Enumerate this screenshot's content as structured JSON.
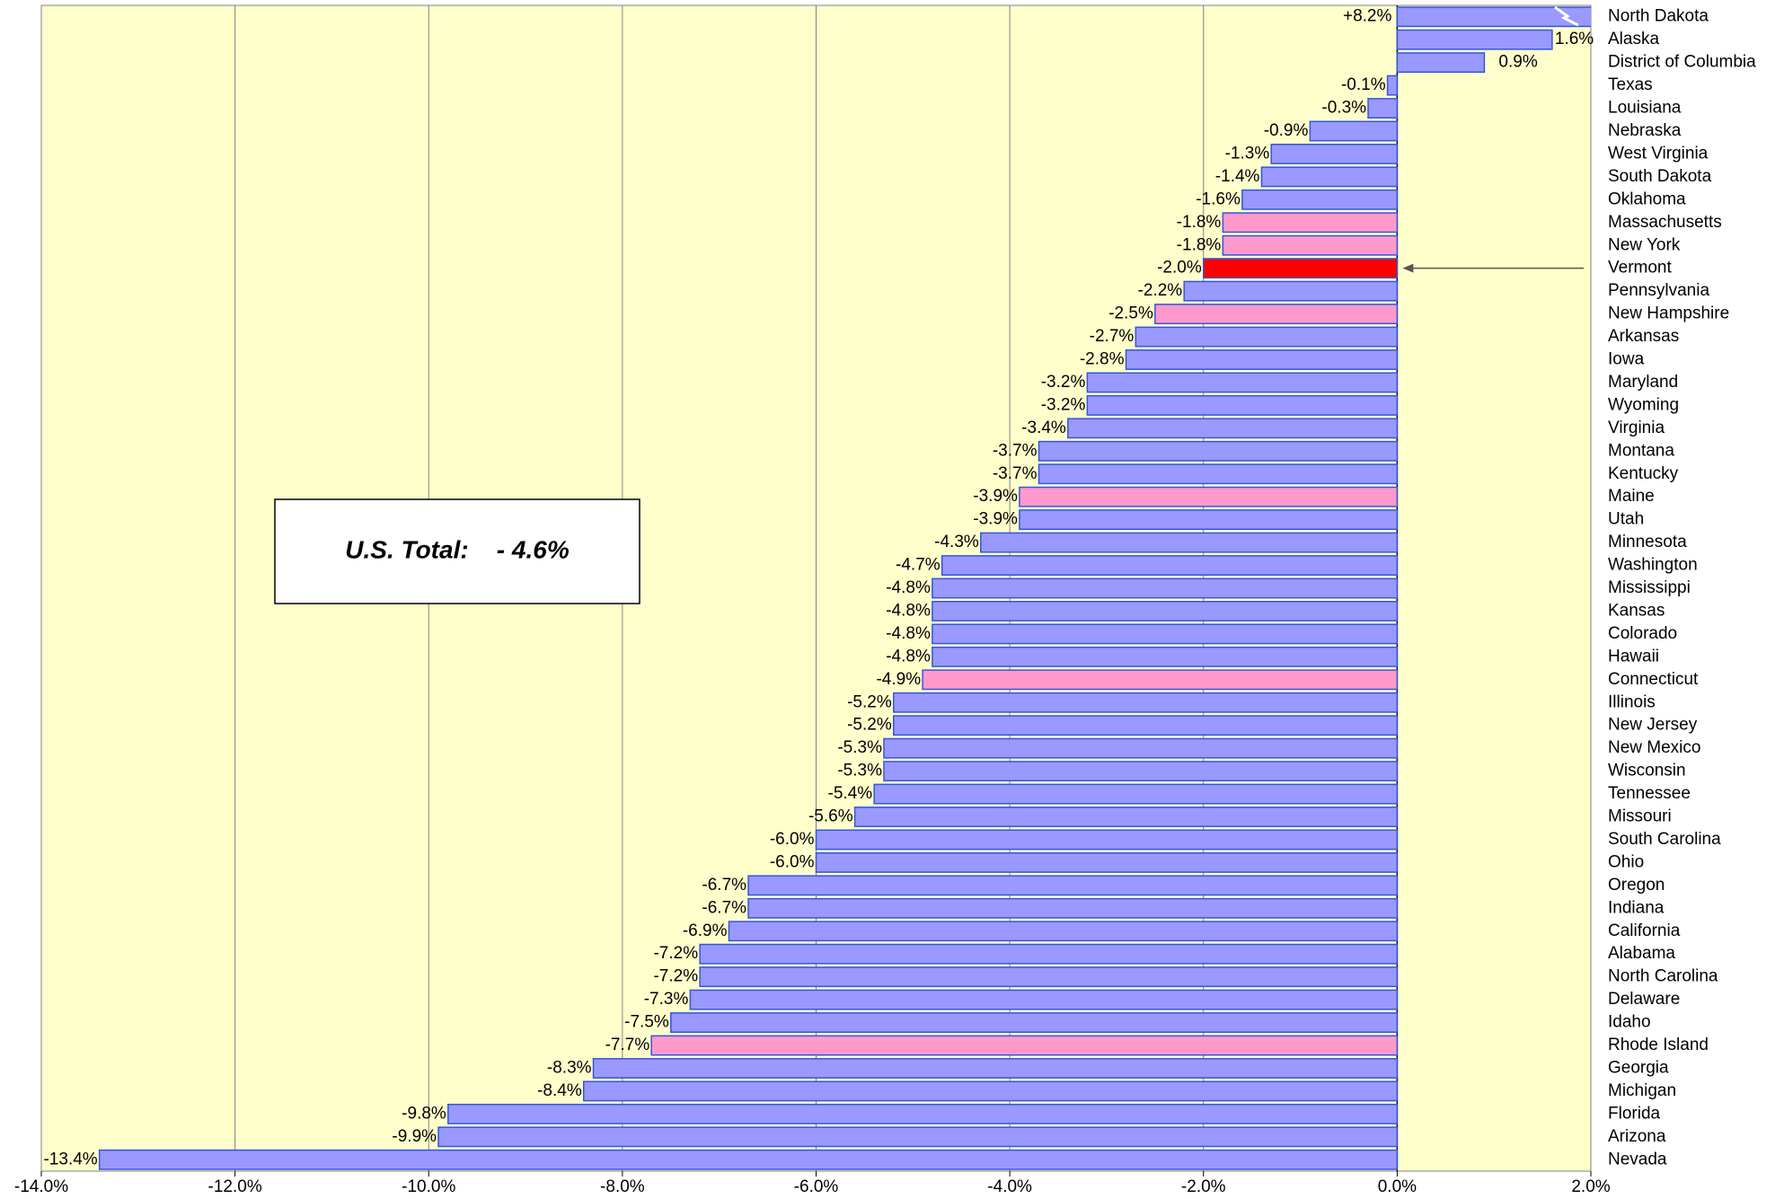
{
  "chart_data": {
    "type": "hbar",
    "categories": [
      "North Dakota",
      "Alaska",
      "District of Columbia",
      "Texas",
      "Louisiana",
      "Nebraska",
      "West Virginia",
      "South Dakota",
      "Oklahoma",
      "Massachusetts",
      "New York",
      "Vermont",
      "Pennsylvania",
      "New Hampshire",
      "Arkansas",
      "Iowa",
      "Maryland",
      "Wyoming",
      "Virginia",
      "Montana",
      "Kentucky",
      "Maine",
      "Utah",
      "Minnesota",
      "Washington",
      "Mississippi",
      "Kansas",
      "Colorado",
      "Hawaii",
      "Connecticut",
      "Illinois",
      "New Jersey",
      "New Mexico",
      "Wisconsin",
      "Tennessee",
      "Missouri",
      "South Carolina",
      "Ohio",
      "Oregon",
      "Indiana",
      "California",
      "Alabama",
      "North Carolina",
      "Delaware",
      "Idaho",
      "Rhode Island",
      "Georgia",
      "Michigan",
      "Florida",
      "Arizona",
      "Nevada"
    ],
    "values": [
      8.2,
      1.6,
      0.9,
      -0.1,
      -0.3,
      -0.9,
      -1.3,
      -1.4,
      -1.6,
      -1.8,
      -1.8,
      -2.0,
      -2.2,
      -2.5,
      -2.7,
      -2.8,
      -3.2,
      -3.2,
      -3.4,
      -3.7,
      -3.7,
      -3.9,
      -3.9,
      -4.3,
      -4.7,
      -4.8,
      -4.8,
      -4.8,
      -4.8,
      -4.9,
      -5.2,
      -5.2,
      -5.3,
      -5.3,
      -5.4,
      -5.6,
      -6.0,
      -6.0,
      -6.7,
      -6.7,
      -6.9,
      -7.2,
      -7.2,
      -7.3,
      -7.5,
      -7.7,
      -8.3,
      -8.4,
      -9.8,
      -9.9,
      -13.4
    ],
    "value_labels": [
      "+8.2%",
      "1.6%",
      "0.9%",
      "-0.1%",
      "-0.3%",
      "-0.9%",
      "-1.3%",
      "-1.4%",
      "-1.6%",
      "-1.8%",
      "-1.8%",
      "-2.0%",
      "-2.2%",
      "-2.5%",
      "-2.7%",
      "-2.8%",
      "-3.2%",
      "-3.2%",
      "-3.4%",
      "-3.7%",
      "-3.7%",
      "-3.9%",
      "-3.9%",
      "-4.3%",
      "-4.7%",
      "-4.8%",
      "-4.8%",
      "-4.8%",
      "-4.8%",
      "-4.9%",
      "-5.2%",
      "-5.2%",
      "-5.3%",
      "-5.3%",
      "-5.4%",
      "-5.6%",
      "-6.0%",
      "-6.0%",
      "-6.7%",
      "-6.7%",
      "-6.9%",
      "-7.2%",
      "-7.2%",
      "-7.3%",
      "-7.5%",
      "-7.7%",
      "-8.3%",
      "-8.4%",
      "-9.8%",
      "-9.9%",
      "-13.4%"
    ],
    "colors": [
      "#9999ff",
      "#9999ff",
      "#9999ff",
      "#9999ff",
      "#9999ff",
      "#9999ff",
      "#9999ff",
      "#9999ff",
      "#9999ff",
      "#ff99cc",
      "#ff99cc",
      "#ff0000",
      "#9999ff",
      "#ff99cc",
      "#9999ff",
      "#9999ff",
      "#9999ff",
      "#9999ff",
      "#9999ff",
      "#9999ff",
      "#9999ff",
      "#ff99cc",
      "#9999ff",
      "#9999ff",
      "#9999ff",
      "#9999ff",
      "#9999ff",
      "#9999ff",
      "#9999ff",
      "#ff99cc",
      "#9999ff",
      "#9999ff",
      "#9999ff",
      "#9999ff",
      "#9999ff",
      "#9999ff",
      "#9999ff",
      "#9999ff",
      "#9999ff",
      "#9999ff",
      "#9999ff",
      "#9999ff",
      "#9999ff",
      "#9999ff",
      "#9999ff",
      "#ff99cc",
      "#9999ff",
      "#9999ff",
      "#9999ff",
      "#9999ff",
      "#9999ff"
    ],
    "xlim": [
      -14,
      2
    ],
    "xticks": [
      {
        "value": -14,
        "label": "-14.0%"
      },
      {
        "value": -12,
        "label": "-12.0%"
      },
      {
        "value": -10,
        "label": "-10.0%"
      },
      {
        "value": -8,
        "label": "-8.0%"
      },
      {
        "value": -6,
        "label": "-6.0%"
      },
      {
        "value": -4,
        "label": "-4.0%"
      },
      {
        "value": -2,
        "label": "-2.0%"
      },
      {
        "value": 0,
        "label": "0.0%"
      },
      {
        "value": 2,
        "label": "2.0%"
      }
    ],
    "grid": true,
    "annotation": "U.S. Total:    - 4.6%"
  }
}
